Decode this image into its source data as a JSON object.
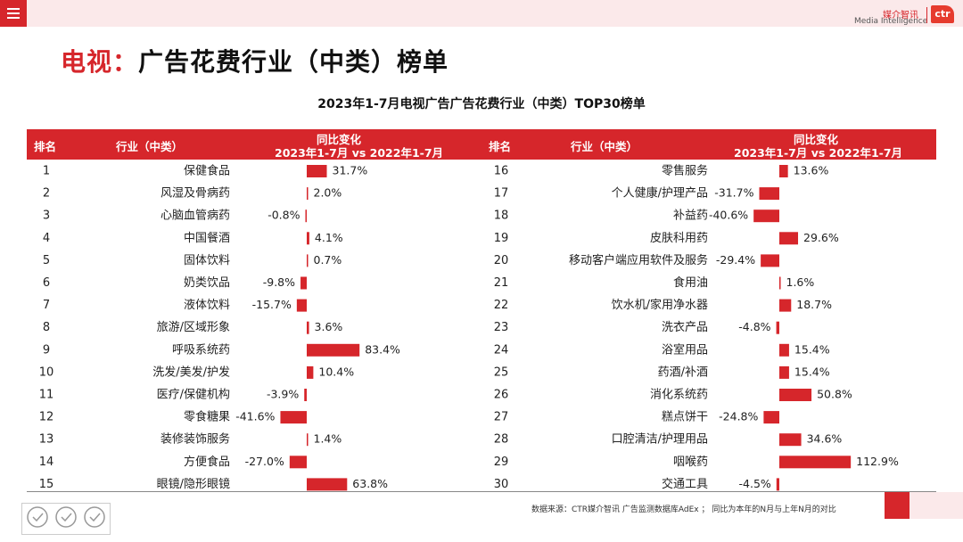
{
  "header": {
    "menu_icon": "hamburger-icon",
    "brand_cn": "媒介智讯",
    "brand_en": "Media Intelligence",
    "brand_logo": "ctr"
  },
  "page": {
    "title_red": "电视：",
    "title_black": "广告花费行业（中类）榜单",
    "footnote": "数据来源：CTR媒介智讯 广告监测数据库AdEx ；  同比为本年的N月与上年N月的对比"
  },
  "colors": {
    "accent": "#d6262b",
    "bar": "#d6262b",
    "header_bg": "#fbe9ea"
  },
  "chart_data": {
    "type": "bar",
    "orientation": "horizontal",
    "title": "2023年1-7月电视广告广告花费行业（中类）TOP30榜单",
    "columns": {
      "rank": "排名",
      "industry": "行业（中类）",
      "change_title": "同比变化",
      "change_subtitle": "2023年1-7月 vs 2022年1-7月"
    },
    "unit": "%",
    "rows": [
      {
        "rank": "1",
        "industry": "保健食品",
        "change": 31.7,
        "label": "31.7%"
      },
      {
        "rank": "2",
        "industry": "风湿及骨病药",
        "change": 2.0,
        "label": "2.0%"
      },
      {
        "rank": "3",
        "industry": "心脑血管病药",
        "change": -0.8,
        "label": "-0.8%"
      },
      {
        "rank": "4",
        "industry": "中国餐酒",
        "change": 4.1,
        "label": "4.1%"
      },
      {
        "rank": "5",
        "industry": "固体饮料",
        "change": 0.7,
        "label": "0.7%"
      },
      {
        "rank": "6",
        "industry": "奶类饮品",
        "change": -9.8,
        "label": "-9.8%"
      },
      {
        "rank": "7",
        "industry": "液体饮料",
        "change": -15.7,
        "label": "-15.7%"
      },
      {
        "rank": "8",
        "industry": "旅游/区域形象",
        "change": 3.6,
        "label": "3.6%"
      },
      {
        "rank": "9",
        "industry": "呼吸系统药",
        "change": 83.4,
        "label": "83.4%"
      },
      {
        "rank": "10",
        "industry": "洗发/美发/护发",
        "change": 10.4,
        "label": "10.4%"
      },
      {
        "rank": "11",
        "industry": "医疗/保健机构",
        "change": -3.9,
        "label": "-3.9%"
      },
      {
        "rank": "12",
        "industry": "零食糖果",
        "change": -41.6,
        "label": "-41.6%"
      },
      {
        "rank": "13",
        "industry": "装修装饰服务",
        "change": 1.4,
        "label": "1.4%"
      },
      {
        "rank": "14",
        "industry": "方便食品",
        "change": -27.0,
        "label": "-27.0%"
      },
      {
        "rank": "15",
        "industry": "眼镜/隐形眼镜",
        "change": 63.8,
        "label": "63.8%"
      },
      {
        "rank": "16",
        "industry": "零售服务",
        "change": 13.6,
        "label": "13.6%"
      },
      {
        "rank": "17",
        "industry": "个人健康/护理产品",
        "change": -31.7,
        "label": "-31.7%"
      },
      {
        "rank": "18",
        "industry": "补益药",
        "change": -40.6,
        "label": "-40.6%"
      },
      {
        "rank": "19",
        "industry": "皮肤科用药",
        "change": 29.6,
        "label": "29.6%"
      },
      {
        "rank": "20",
        "industry": "移动客户端应用软件及服务",
        "change": -29.4,
        "label": "-29.4%"
      },
      {
        "rank": "21",
        "industry": "食用油",
        "change": 1.6,
        "label": "1.6%"
      },
      {
        "rank": "22",
        "industry": "饮水机/家用净水器",
        "change": 18.7,
        "label": "18.7%"
      },
      {
        "rank": "23",
        "industry": "洗衣产品",
        "change": -4.8,
        "label": "-4.8%"
      },
      {
        "rank": "24",
        "industry": "浴室用品",
        "change": 15.4,
        "label": "15.4%"
      },
      {
        "rank": "25",
        "industry": "药酒/补酒",
        "change": 15.4,
        "label": "15.4%"
      },
      {
        "rank": "26",
        "industry": "消化系统药",
        "change": 50.8,
        "label": "50.8%"
      },
      {
        "rank": "27",
        "industry": "糕点饼干",
        "change": -24.8,
        "label": "-24.8%"
      },
      {
        "rank": "28",
        "industry": "口腔清洁/护理用品",
        "change": 34.6,
        "label": "34.6%"
      },
      {
        "rank": "29",
        "industry": "咽喉药",
        "change": 112.9,
        "label": "112.9%"
      },
      {
        "rank": "30",
        "industry": "交通工具",
        "change": -4.5,
        "label": "-4.5%"
      }
    ]
  }
}
